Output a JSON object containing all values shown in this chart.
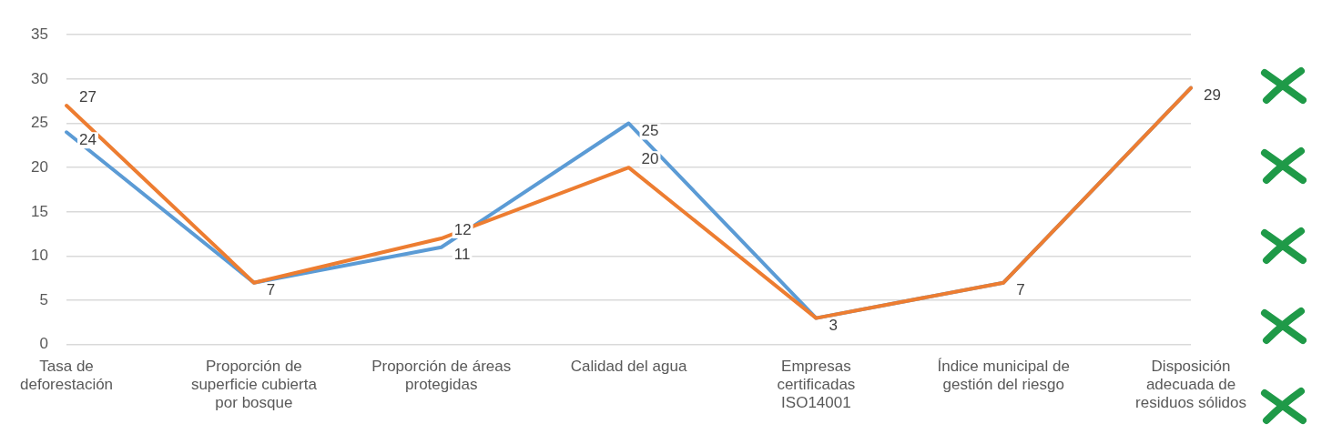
{
  "chart_data": {
    "type": "line",
    "categories": [
      "Tasa de deforestación",
      "Proporción de superficie cubierta por bosque",
      "Proporción de áreas protegidas",
      "Calidad del agua",
      "Empresas certificadas ISO14001",
      "Índice municipal de gestión del riesgo",
      "Disposición adecuada de residuos sólidos"
    ],
    "series": [
      {
        "color": "#5b9bd5",
        "values": [
          24,
          7,
          11,
          25,
          3,
          7,
          29
        ],
        "value_labels": [
          "24",
          "7",
          "11",
          "25",
          "3",
          "7",
          "29"
        ]
      },
      {
        "color": "#ed7d31",
        "values": [
          27,
          7,
          12,
          20,
          3,
          7,
          29
        ],
        "value_labels": [
          "27",
          null,
          "12",
          "20",
          null,
          null,
          null
        ]
      }
    ],
    "ylim": [
      0,
      35
    ],
    "yticks": [
      0,
      5,
      10,
      15,
      20,
      25,
      30,
      35
    ],
    "grid": "y",
    "legend": false,
    "marker": "none",
    "line_style": "solid"
  }
}
